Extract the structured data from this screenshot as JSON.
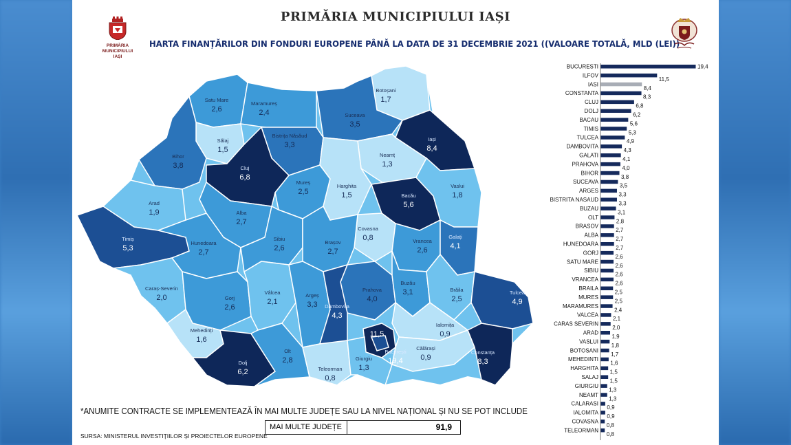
{
  "header": {
    "title": "PRIMĂRIA MUNICIPIULUI IAȘI",
    "subtitle": "HARTA FINANȚĂRILOR DIN FONDURI EUROPENE PÂNĂ LA DATA DE 31 DECEMBRIE 2021 ((VALOARE TOTALĂ, MLD (LEI))",
    "logo_left_text": [
      "PRIMĂRIA",
      "MUNICIPIULUI",
      "IAȘI"
    ]
  },
  "colors": {
    "lightest": "#b7e2f8",
    "light": "#6fc2ee",
    "mid": "#3d9ad8",
    "medium_dark": "#2b74ba",
    "dark": "#1c4f94",
    "darkest": "#0e2759",
    "bar": "#152a5c",
    "bar_highlight": "#a8adb6"
  },
  "chart_data": {
    "type": "bar",
    "orientation": "horizontal",
    "highlight": "IASI",
    "categories": [
      "BUCURESTI",
      "ILFOV",
      "IASI",
      "CONSTANTA",
      "CLUJ",
      "DOLJ",
      "BACAU",
      "TIMIS",
      "TULCEA",
      "DAMBOVITA",
      "GALATI",
      "PRAHOVA",
      "BIHOR",
      "SUCEAVA",
      "ARGES",
      "BISTRITA NASAUD",
      "BUZAU",
      "OLT",
      "BRASOV",
      "ALBA",
      "HUNEDOARA",
      "GORJ",
      "SATU MARE",
      "SIBIU",
      "VRANCEA",
      "BRAILA",
      "MURES",
      "MARAMURES",
      "VALCEA",
      "CARAS SEVERIN",
      "ARAD",
      "VASLUI",
      "BOTOSANI",
      "MEHEDINTI",
      "HARGHITA",
      "SALAJ",
      "GIURGIU",
      "NEAMT",
      "CALARASI",
      "IALOMITA",
      "COVASNA",
      "TELEORMAN"
    ],
    "values": [
      19.4,
      11.5,
      8.4,
      8.3,
      6.8,
      6.2,
      5.6,
      5.3,
      4.9,
      4.3,
      4.1,
      4.0,
      3.8,
      3.5,
      3.3,
      3.3,
      3.1,
      2.8,
      2.7,
      2.7,
      2.7,
      2.6,
      2.6,
      2.6,
      2.6,
      2.5,
      2.5,
      2.4,
      2.1,
      2.0,
      1.9,
      1.8,
      1.7,
      1.6,
      1.5,
      1.5,
      1.3,
      1.3,
      0.9,
      0.9,
      0.8,
      0.8
    ],
    "value_labels": [
      "19,4",
      "11,5",
      "8,4",
      "8,3",
      "6,8",
      "6,2",
      "5,6",
      "5,3",
      "4,9",
      "4,3",
      "4,1",
      "4,0",
      "3,8",
      "3,5",
      "3,3",
      "3,3",
      "3,1",
      "2,8",
      "2,7",
      "2,7",
      "2,7",
      "2,6",
      "2,6",
      "2,6",
      "2,6",
      "2,5",
      "2,5",
      "2,4",
      "2,1",
      "2,0",
      "1,9",
      "1,8",
      "1,7",
      "1,6",
      "1,5",
      "1,5",
      "1,3",
      "1,3",
      "0,9",
      "0,9",
      "0,8",
      "0,8"
    ]
  },
  "map_labels": [
    {
      "name": "Satu Mare",
      "value": "2,6"
    },
    {
      "name": "Maramureș",
      "value": "2,4"
    },
    {
      "name": "Botoșani",
      "value": "1,7"
    },
    {
      "name": "Suceava",
      "value": "3,5"
    },
    {
      "name": "Sălaj",
      "value": "1,5"
    },
    {
      "name": "Bistrița Năsăud",
      "value": "3,3"
    },
    {
      "name": "Iași",
      "value": "8,4"
    },
    {
      "name": "Bihor",
      "value": "3,8"
    },
    {
      "name": "Cluj",
      "value": "6,8"
    },
    {
      "name": "Neamț",
      "value": "1,3"
    },
    {
      "name": "Mureș",
      "value": "2,5"
    },
    {
      "name": "Harghita",
      "value": "1,5"
    },
    {
      "name": "Bacău",
      "value": "5,6"
    },
    {
      "name": "Vaslui",
      "value": "1,8"
    },
    {
      "name": "Arad",
      "value": "1,9"
    },
    {
      "name": "Alba",
      "value": "2,7"
    },
    {
      "name": "Covasna",
      "value": "0,8"
    },
    {
      "name": "Timiș",
      "value": "5,3"
    },
    {
      "name": "Hunedoara",
      "value": "2,7"
    },
    {
      "name": "Sibiu",
      "value": "2,6"
    },
    {
      "name": "Brașov",
      "value": "2,7"
    },
    {
      "name": "Vrancea",
      "value": "2,6"
    },
    {
      "name": "Galați",
      "value": "4,1"
    },
    {
      "name": "Caraș-Severin",
      "value": "2,0"
    },
    {
      "name": "Gorj",
      "value": "2,6"
    },
    {
      "name": "Vâlcea",
      "value": "2,1"
    },
    {
      "name": "Argeș",
      "value": "3,3"
    },
    {
      "name": "Prahova",
      "value": "4,0"
    },
    {
      "name": "Buzău",
      "value": "3,1"
    },
    {
      "name": "Brăila",
      "value": "2,5"
    },
    {
      "name": "Tulcea",
      "value": "4,9"
    },
    {
      "name": "Dâmbovița",
      "value": "4,3"
    },
    {
      "name": "Ialomița",
      "value": "0,9"
    },
    {
      "name": "Mehedinți",
      "value": "1,6"
    },
    {
      "name": "",
      "value": "11,5"
    },
    {
      "name": "București",
      "value": "19,4"
    },
    {
      "name": "Călărași",
      "value": "0,9"
    },
    {
      "name": "Constanța",
      "value": "8,3"
    },
    {
      "name": "Dolj",
      "value": "6,2"
    },
    {
      "name": "Olt",
      "value": "2,8"
    },
    {
      "name": "Teleorman",
      "value": "0,8"
    },
    {
      "name": "Giurgiu",
      "value": "1,3"
    }
  ],
  "footer": {
    "note": "*ANUMITE CONTRACTE SE IMPLEMENTEAZĂ ÎN MAI MULTE JUDEȚE SAU LA NIVEL NAȚIONAL ȘI NU SE POT INCLUDE",
    "multi_label": "MAI MULTE JUDEȚE",
    "multi_value": "91,9",
    "source": "SURSA: MINISTERUL INVESTIȚIILOR ȘI PROIECTELOR EUROPENE"
  }
}
